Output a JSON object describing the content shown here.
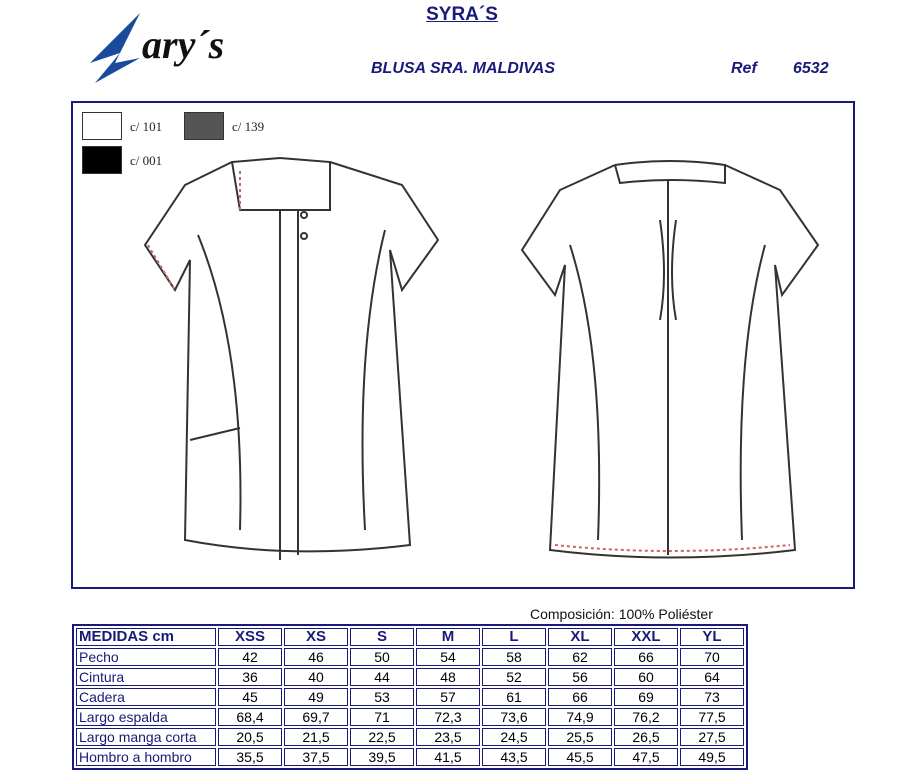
{
  "brand": {
    "logo_text": "Gary's",
    "color": "#1a4a9a"
  },
  "header": {
    "title": "SYRA´S",
    "product": "BLUSA SRA. MALDIVAS",
    "ref_label": "Ref",
    "ref_value": "6532"
  },
  "colors": [
    {
      "code": "c/ 101",
      "hex": "#ffffff"
    },
    {
      "code": "c/ 139",
      "hex": "#555555"
    },
    {
      "code": "c/ 001",
      "hex": "#000000"
    }
  ],
  "composition": "Composición: 100% Poliéster",
  "table": {
    "header": [
      "MEDIDAS cm",
      "XSS",
      "XS",
      "S",
      "M",
      "L",
      "XL",
      "XXL",
      "YL"
    ],
    "rows": [
      [
        "Pecho",
        "42",
        "46",
        "50",
        "54",
        "58",
        "62",
        "66",
        "70"
      ],
      [
        "Cintura",
        "36",
        "40",
        "44",
        "48",
        "52",
        "56",
        "60",
        "64"
      ],
      [
        "Cadera",
        "45",
        "49",
        "53",
        "57",
        "61",
        "66",
        "69",
        "73"
      ],
      [
        "Largo espalda",
        "68,4",
        "69,7",
        "71",
        "72,3",
        "73,6",
        "74,9",
        "76,2",
        "77,5"
      ],
      [
        "Largo manga corta",
        "20,5",
        "21,5",
        "22,5",
        "23,5",
        "24,5",
        "25,5",
        "26,5",
        "27,5"
      ],
      [
        "Hombro a hombro",
        "35,5",
        "37,5",
        "39,5",
        "41,5",
        "43,5",
        "45,5",
        "47,5",
        "49,5"
      ]
    ]
  }
}
